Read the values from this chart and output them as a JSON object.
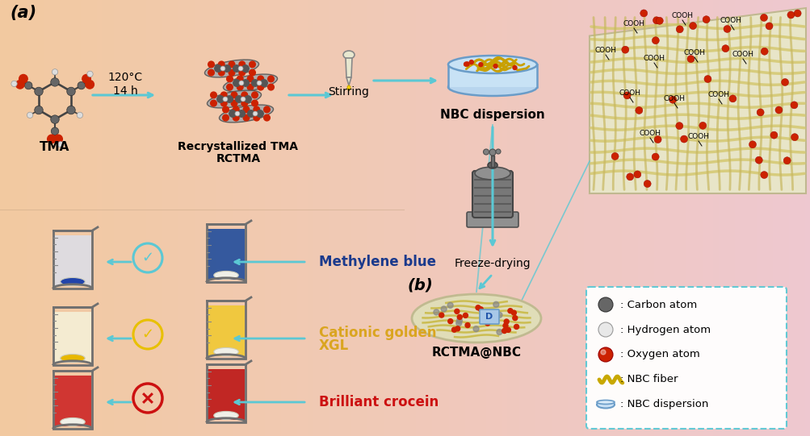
{
  "bg_left_color": "#F2C9A0",
  "bg_right_color": "#EEC8D0",
  "panel_a_label": "(a)",
  "panel_b_label": "(b)",
  "arrow_color": "#5BC8D4",
  "tma_label": "TMA",
  "reaction_label1": "120°C",
  "reaction_label2": "14 h",
  "rctma_label1": "Recrystallized TMA",
  "rctma_label2": "RCTMA",
  "stirring_label": "Stirring",
  "nbc_dispersion_label": "NBC dispersion",
  "freeze_drying_label": "Freeze-drying",
  "rctma_nbc_label": "RCTMA@NBC",
  "dye_labels": [
    "Methylene blue",
    "Cationic golden",
    "XGL",
    "Brilliant crocein"
  ],
  "dye_colors": [
    "#1B3A8C",
    "#DAA520",
    "#DAA520",
    "#CC1111"
  ],
  "legend_items": [
    {
      "label": ": Carbon atom",
      "dot_color": "#666666"
    },
    {
      "label": ": Hydrogen atom",
      "dot_color": "#E8E8E8"
    },
    {
      "label": ": Oxygen atom",
      "dot_color": "#CC2200"
    },
    {
      "label": ": NBC fiber",
      "dot_color": "#C8B830"
    },
    {
      "label": ": NBC dispersion",
      "dot_color": "#8BB8D8"
    }
  ]
}
